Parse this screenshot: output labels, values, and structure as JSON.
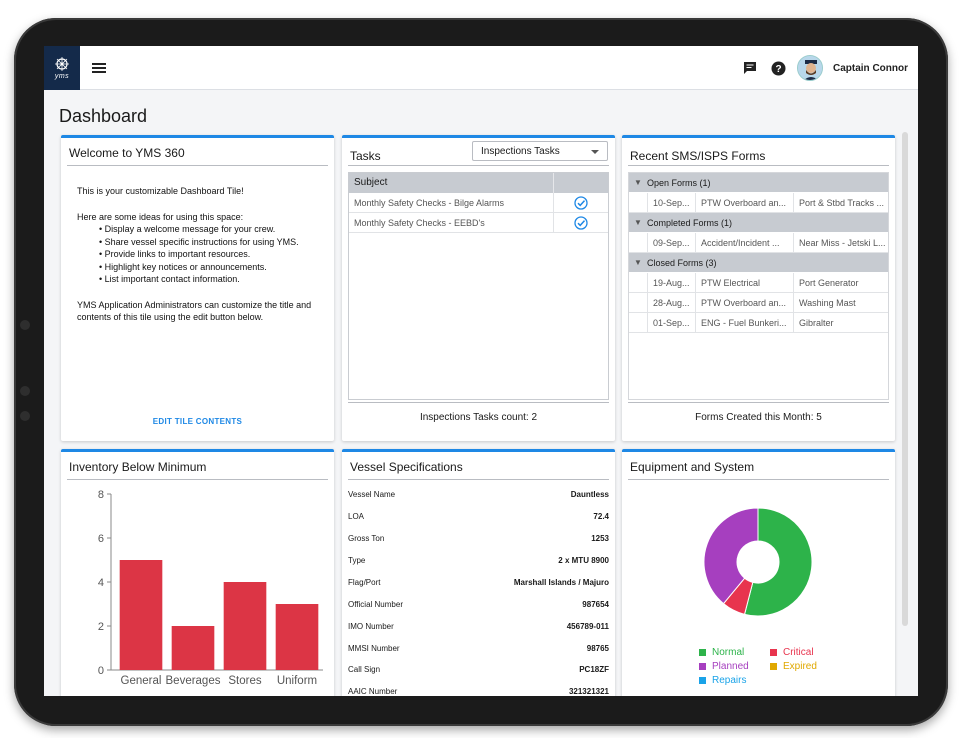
{
  "header": {
    "logo_text": "yms",
    "user_name": "Captain Connor"
  },
  "page": {
    "title": "Dashboard"
  },
  "welcome": {
    "title": "Welcome to YMS 360",
    "intro": "This is your customizable Dashboard Tile!",
    "ideas_heading": "Here are some ideas for using this space:",
    "ideas": [
      "Display a welcome message for your crew.",
      "Share vessel specific instructions for using YMS.",
      "Provide links to important resources.",
      "Highlight key notices or announcements.",
      "List important contact information."
    ],
    "admin_note": "YMS Application Administrators can customize the title and contents of this tile using the edit button below.",
    "edit_label": "EDIT TILE CONTENTS"
  },
  "tasks": {
    "title": "Tasks",
    "filter_value": "Inspections Tasks",
    "column_subject": "Subject",
    "rows": [
      {
        "subject": "Monthly Safety Checks - Bilge Alarms"
      },
      {
        "subject": "Monthly Safety Checks - EEBD's"
      }
    ],
    "footer": "Inspections Tasks count: 2"
  },
  "forms": {
    "title": "Recent SMS/ISPS Forms",
    "groups": [
      {
        "label": "Open Forms (1)",
        "rows": [
          [
            "10-Sep...",
            "PTW Overboard an...",
            "Port & Stbd Tracks ..."
          ]
        ]
      },
      {
        "label": "Completed Forms (1)",
        "rows": [
          [
            "09-Sep...",
            "Accident/Incident ...",
            "Near Miss - Jetski L..."
          ]
        ]
      },
      {
        "label": "Closed Forms (3)",
        "rows": [
          [
            "19-Aug...",
            "PTW Electrical",
            "Port Generator"
          ],
          [
            "28-Aug...",
            "PTW Overboard an...",
            "Washing Mast"
          ],
          [
            "01-Sep...",
            "ENG - Fuel Bunkeri...",
            "Gibralter"
          ]
        ]
      }
    ],
    "footer": "Forms Created this Month: 5"
  },
  "inventory": {
    "title": "Inventory Below Minimum",
    "chart_data": {
      "type": "bar",
      "categories": [
        "General",
        "Beverages",
        "Stores",
        "Uniform"
      ],
      "values": [
        5,
        2,
        4,
        3
      ],
      "ylim": [
        0,
        8
      ],
      "yticks": [
        0,
        2,
        4,
        6,
        8
      ],
      "color": "#dc3545"
    }
  },
  "vessel": {
    "title": "Vessel Specifications",
    "specs": [
      {
        "label": "Vessel Name",
        "value": "Dauntless"
      },
      {
        "label": "LOA",
        "value": "72.4"
      },
      {
        "label": "Gross Ton",
        "value": "1253"
      },
      {
        "label": "Type",
        "value": "2 x MTU 8900"
      },
      {
        "label": "Flag/Port",
        "value": "Marshall Islands / Majuro"
      },
      {
        "label": "Official Number",
        "value": "987654"
      },
      {
        "label": "IMO Number",
        "value": "456789-011"
      },
      {
        "label": "MMSI Number",
        "value": "98765"
      },
      {
        "label": "Call Sign",
        "value": "PC18ZF"
      },
      {
        "label": "AAIC Number",
        "value": "321321321"
      }
    ]
  },
  "equipment": {
    "title": "Equipment and System",
    "chart_data": {
      "type": "pie",
      "series": [
        {
          "name": "Normal",
          "value": 54,
          "color": "#2db34a"
        },
        {
          "name": "Critical",
          "value": 7,
          "color": "#e8344e"
        },
        {
          "name": "Planned",
          "value": 39,
          "color": "#a63fbf"
        },
        {
          "name": "Expired",
          "value": 0,
          "color": "#e0a800"
        },
        {
          "name": "Repairs",
          "value": 0,
          "color": "#1aa3e8"
        }
      ],
      "legend": "bottom"
    }
  }
}
